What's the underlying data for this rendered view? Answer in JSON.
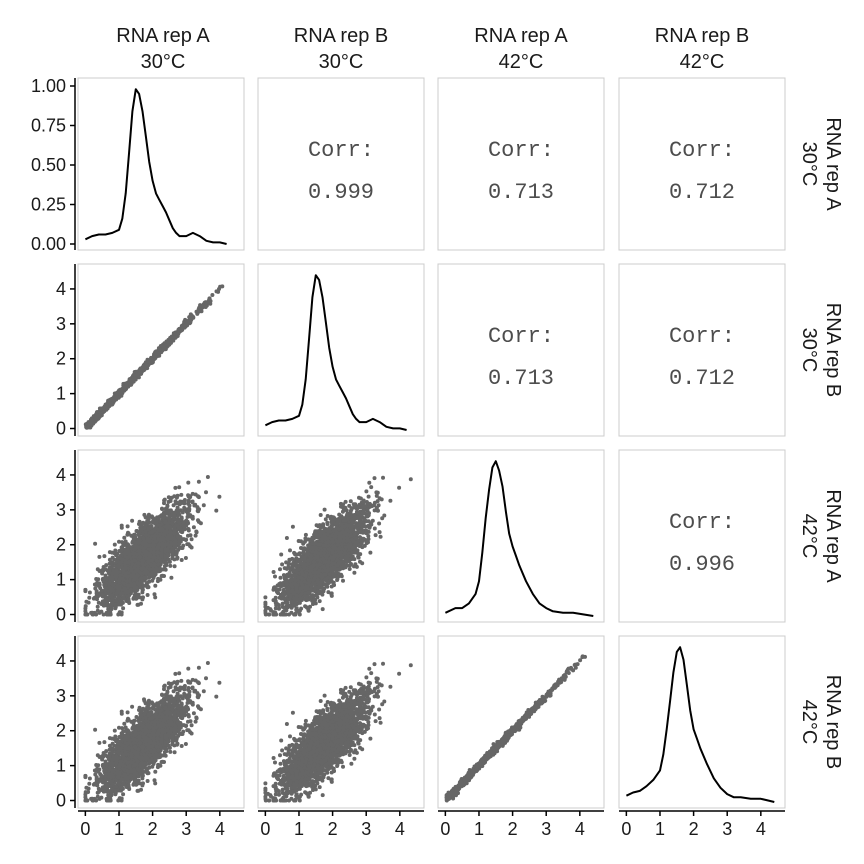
{
  "chart_data": {
    "type": "scatter",
    "title": "",
    "variables": [
      "RNA rep A 30°C",
      "RNA rep B 30°C",
      "RNA rep A 42°C",
      "RNA rep B 42°C"
    ],
    "column_labels": [
      {
        "line1": "RNA rep A",
        "line2": "30°C"
      },
      {
        "line1": "RNA rep B",
        "line2": "30°C"
      },
      {
        "line1": "RNA rep A",
        "line2": "42°C"
      },
      {
        "line1": "RNA rep B",
        "line2": "42°C"
      }
    ],
    "row_labels": [
      {
        "line1": "RNA rep A",
        "line2": "30°C"
      },
      {
        "line1": "RNA rep B",
        "line2": "30°C"
      },
      {
        "line1": "RNA rep A",
        "line2": "42°C"
      },
      {
        "line1": "RNA rep B",
        "line2": "42°C"
      }
    ],
    "corr_label": "Corr:",
    "correlations": [
      {
        "row": 0,
        "col": 1,
        "value": "0.999"
      },
      {
        "row": 0,
        "col": 2,
        "value": "0.713"
      },
      {
        "row": 0,
        "col": 3,
        "value": "0.712"
      },
      {
        "row": 1,
        "col": 2,
        "value": "0.713"
      },
      {
        "row": 1,
        "col": 3,
        "value": "0.712"
      },
      {
        "row": 2,
        "col": 3,
        "value": "0.996"
      }
    ],
    "density_y_ticks": [
      "0.00",
      "0.25",
      "0.50",
      "0.75",
      "1.00"
    ],
    "density_ylim": [
      0,
      1.0
    ],
    "value_ticks": [
      "0",
      "1",
      "2",
      "3",
      "4"
    ],
    "xlim": [
      -0.1,
      4.6
    ],
    "ylim": [
      -0.1,
      4.6
    ],
    "point_color": "#666666",
    "line_color": "#000000",
    "panel_border_color": "#cccccc",
    "density_curves": [
      {
        "variable": 0,
        "x": [
          0,
          0.2,
          0.4,
          0.6,
          0.8,
          1.0,
          1.1,
          1.2,
          1.3,
          1.4,
          1.5,
          1.6,
          1.7,
          1.8,
          1.9,
          2.0,
          2.1,
          2.2,
          2.3,
          2.4,
          2.5,
          2.6,
          2.7,
          2.8,
          3.0,
          3.2,
          3.4,
          3.6,
          3.8,
          4.0,
          4.2
        ],
        "y": [
          0.03,
          0.05,
          0.06,
          0.06,
          0.07,
          0.09,
          0.16,
          0.32,
          0.58,
          0.84,
          0.98,
          0.95,
          0.84,
          0.68,
          0.52,
          0.4,
          0.32,
          0.28,
          0.24,
          0.2,
          0.15,
          0.1,
          0.07,
          0.05,
          0.05,
          0.07,
          0.05,
          0.02,
          0.01,
          0.01,
          0.0
        ]
      },
      {
        "variable": 1,
        "x": [
          0,
          0.2,
          0.4,
          0.6,
          0.8,
          1.0,
          1.1,
          1.2,
          1.3,
          1.4,
          1.5,
          1.6,
          1.7,
          1.8,
          1.9,
          2.0,
          2.1,
          2.2,
          2.3,
          2.4,
          2.5,
          2.6,
          2.7,
          2.8,
          3.0,
          3.2,
          3.4,
          3.6,
          3.8,
          4.0,
          4.2
        ],
        "y": [
          0.03,
          0.05,
          0.06,
          0.06,
          0.07,
          0.09,
          0.16,
          0.32,
          0.58,
          0.84,
          0.98,
          0.95,
          0.84,
          0.68,
          0.52,
          0.4,
          0.32,
          0.28,
          0.24,
          0.2,
          0.15,
          0.1,
          0.07,
          0.05,
          0.05,
          0.07,
          0.05,
          0.02,
          0.01,
          0.01,
          0.0
        ]
      },
      {
        "variable": 2,
        "x": [
          0,
          0.3,
          0.5,
          0.7,
          0.9,
          1.0,
          1.1,
          1.2,
          1.3,
          1.4,
          1.5,
          1.6,
          1.7,
          1.8,
          1.9,
          2.0,
          2.1,
          2.2,
          2.4,
          2.6,
          2.8,
          3.0,
          3.2,
          3.5,
          3.8,
          4.1,
          4.4
        ],
        "y": [
          0.02,
          0.05,
          0.05,
          0.08,
          0.14,
          0.22,
          0.4,
          0.62,
          0.8,
          0.94,
          0.98,
          0.92,
          0.82,
          0.66,
          0.52,
          0.44,
          0.38,
          0.32,
          0.22,
          0.14,
          0.08,
          0.05,
          0.03,
          0.02,
          0.02,
          0.01,
          0.0
        ]
      },
      {
        "variable": 3,
        "x": [
          0,
          0.2,
          0.4,
          0.6,
          0.8,
          1.0,
          1.1,
          1.2,
          1.3,
          1.4,
          1.5,
          1.6,
          1.7,
          1.8,
          1.9,
          2.0,
          2.1,
          2.2,
          2.4,
          2.6,
          2.8,
          3.0,
          3.2,
          3.4,
          3.7,
          4.0,
          4.2,
          4.4
        ],
        "y": [
          0.04,
          0.06,
          0.07,
          0.1,
          0.14,
          0.2,
          0.3,
          0.46,
          0.64,
          0.82,
          0.95,
          0.98,
          0.9,
          0.74,
          0.58,
          0.46,
          0.4,
          0.34,
          0.24,
          0.15,
          0.09,
          0.05,
          0.03,
          0.03,
          0.02,
          0.02,
          0.01,
          0.0
        ]
      }
    ]
  }
}
